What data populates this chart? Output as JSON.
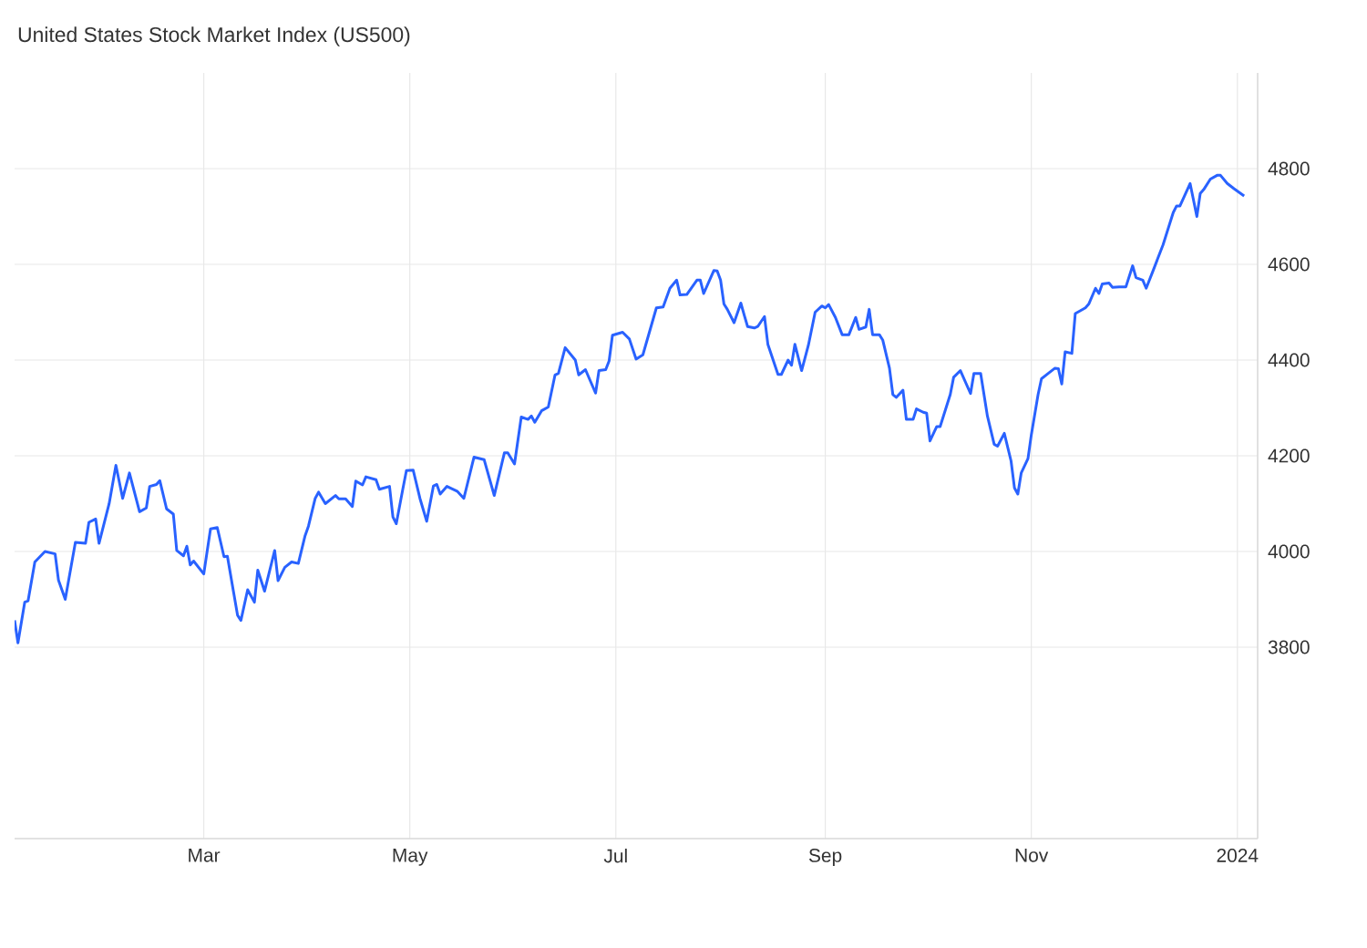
{
  "chart_data": {
    "type": "line",
    "title": "United States Stock Market Index (US500)",
    "color": "#2962ff",
    "grid": true,
    "xlim": [
      "2023-01-04",
      "2024-01-07"
    ],
    "ylim": [
      3400,
      5000
    ],
    "xticks": [
      {
        "value": "2023-03-01",
        "label": "Mar"
      },
      {
        "value": "2023-05-01",
        "label": "May"
      },
      {
        "value": "2023-07-01",
        "label": "Jul"
      },
      {
        "value": "2023-09-01",
        "label": "Sep"
      },
      {
        "value": "2023-11-01",
        "label": "Nov"
      },
      {
        "value": "2024-01-01",
        "label": "2024"
      }
    ],
    "yticks": [
      3800,
      4000,
      4200,
      4400,
      4600,
      4800
    ],
    "x": [
      "2023-01-04",
      "2023-01-05",
      "2023-01-07",
      "2023-01-08",
      "2023-01-10",
      "2023-01-13",
      "2023-01-16",
      "2023-01-17",
      "2023-01-19",
      "2023-01-22",
      "2023-01-25",
      "2023-01-26",
      "2023-01-28",
      "2023-01-29",
      "2023-02-01",
      "2023-02-03",
      "2023-02-05",
      "2023-02-07",
      "2023-02-10",
      "2023-02-12",
      "2023-02-13",
      "2023-02-15",
      "2023-02-16",
      "2023-02-18",
      "2023-02-20",
      "2023-02-21",
      "2023-02-23",
      "2023-02-24",
      "2023-02-25",
      "2023-02-26",
      "2023-03-01",
      "2023-03-03",
      "2023-03-05",
      "2023-03-07",
      "2023-03-08",
      "2023-03-11",
      "2023-03-12",
      "2023-03-14",
      "2023-03-16",
      "2023-03-17",
      "2023-03-19",
      "2023-03-22",
      "2023-03-23",
      "2023-03-25",
      "2023-03-27",
      "2023-03-29",
      "2023-03-31",
      "2023-04-01",
      "2023-04-03",
      "2023-04-04",
      "2023-04-06",
      "2023-04-09",
      "2023-04-10",
      "2023-04-12",
      "2023-04-14",
      "2023-04-15",
      "2023-04-17",
      "2023-04-18",
      "2023-04-21",
      "2023-04-22",
      "2023-04-25",
      "2023-04-26",
      "2023-04-27",
      "2023-04-29",
      "2023-04-30",
      "2023-05-02",
      "2023-05-04",
      "2023-05-06",
      "2023-05-08",
      "2023-05-09",
      "2023-05-10",
      "2023-05-12",
      "2023-05-15",
      "2023-05-17",
      "2023-05-20",
      "2023-05-23",
      "2023-05-26",
      "2023-05-29",
      "2023-05-30",
      "2023-06-01",
      "2023-06-03",
      "2023-06-05",
      "2023-06-06",
      "2023-06-07",
      "2023-06-09",
      "2023-06-11",
      "2023-06-13",
      "2023-06-14",
      "2023-06-16",
      "2023-06-19",
      "2023-06-20",
      "2023-06-22",
      "2023-06-25",
      "2023-06-26",
      "2023-06-28",
      "2023-06-29",
      "2023-06-30",
      "2023-07-03",
      "2023-07-05",
      "2023-07-07",
      "2023-07-09",
      "2023-07-13",
      "2023-07-15",
      "2023-07-17",
      "2023-07-19",
      "2023-07-20",
      "2023-07-22",
      "2023-07-25",
      "2023-07-26",
      "2023-07-27",
      "2023-07-30",
      "2023-07-31",
      "2023-08-01",
      "2023-08-02",
      "2023-08-03",
      "2023-08-05",
      "2023-08-07",
      "2023-08-08",
      "2023-08-09",
      "2023-08-11",
      "2023-08-12",
      "2023-08-14",
      "2023-08-15",
      "2023-08-18",
      "2023-08-19",
      "2023-08-21",
      "2023-08-22",
      "2023-08-23",
      "2023-08-25",
      "2023-08-27",
      "2023-08-29",
      "2023-08-31",
      "2023-09-01",
      "2023-09-02",
      "2023-09-04",
      "2023-09-06",
      "2023-09-08",
      "2023-09-10",
      "2023-09-11",
      "2023-09-13",
      "2023-09-14",
      "2023-09-15",
      "2023-09-17",
      "2023-09-18",
      "2023-09-20",
      "2023-09-21",
      "2023-09-22",
      "2023-09-24",
      "2023-09-25",
      "2023-09-27",
      "2023-09-28",
      "2023-09-30",
      "2023-10-01",
      "2023-10-02",
      "2023-10-04",
      "2023-10-05",
      "2023-10-08",
      "2023-10-09",
      "2023-10-11",
      "2023-10-14",
      "2023-10-15",
      "2023-10-17",
      "2023-10-19",
      "2023-10-21",
      "2023-10-22",
      "2023-10-24",
      "2023-10-26",
      "2023-10-27",
      "2023-10-28",
      "2023-10-29",
      "2023-10-31",
      "2023-11-01",
      "2023-11-03",
      "2023-11-04",
      "2023-11-06",
      "2023-11-08",
      "2023-11-09",
      "2023-11-10",
      "2023-11-11",
      "2023-11-13",
      "2023-11-14",
      "2023-11-17",
      "2023-11-18",
      "2023-11-20",
      "2023-11-21",
      "2023-11-22",
      "2023-11-24",
      "2023-11-25",
      "2023-11-27",
      "2023-11-29",
      "2023-12-01",
      "2023-12-02",
      "2023-12-04",
      "2023-12-05",
      "2023-12-07",
      "2023-12-10",
      "2023-12-13",
      "2023-12-14",
      "2023-12-15",
      "2023-12-18",
      "2023-12-20",
      "2023-12-21",
      "2023-12-22",
      "2023-12-24",
      "2023-12-26",
      "2023-12-27",
      "2023-12-29",
      "2023-12-31",
      "2024-01-03"
    ],
    "values": [
      3856,
      3809,
      3894,
      3897,
      3978,
      4000,
      3995,
      3940,
      3900,
      4019,
      4017,
      4061,
      4068,
      4017,
      4100,
      4180,
      4111,
      4164,
      4083,
      4091,
      4136,
      4140,
      4148,
      4089,
      4078,
      4002,
      3991,
      4011,
      3972,
      3980,
      3953,
      4047,
      4050,
      3989,
      3990,
      3867,
      3856,
      3920,
      3894,
      3961,
      3917,
      4002,
      3939,
      3967,
      3978,
      3975,
      4033,
      4053,
      4111,
      4124,
      4100,
      4117,
      4110,
      4110,
      4094,
      4147,
      4139,
      4156,
      4150,
      4130,
      4136,
      4072,
      4058,
      4133,
      4169,
      4170,
      4111,
      4063,
      4137,
      4140,
      4120,
      4136,
      4126,
      4111,
      4197,
      4192,
      4117,
      4206,
      4206,
      4183,
      4281,
      4276,
      4283,
      4270,
      4294,
      4302,
      4369,
      4372,
      4426,
      4400,
      4369,
      4380,
      4331,
      4378,
      4380,
      4398,
      4452,
      4458,
      4444,
      4402,
      4411,
      4509,
      4511,
      4550,
      4567,
      4536,
      4537,
      4567,
      4567,
      4539,
      4587,
      4586,
      4567,
      4517,
      4506,
      4478,
      4519,
      4494,
      4470,
      4467,
      4470,
      4491,
      4433,
      4370,
      4370,
      4400,
      4389,
      4433,
      4378,
      4431,
      4500,
      4513,
      4509,
      4516,
      4489,
      4453,
      4453,
      4489,
      4464,
      4469,
      4506,
      4453,
      4453,
      4442,
      4383,
      4328,
      4322,
      4337,
      4276,
      4276,
      4298,
      4291,
      4289,
      4231,
      4261,
      4261,
      4328,
      4364,
      4378,
      4330,
      4372,
      4372,
      4283,
      4224,
      4220,
      4247,
      4189,
      4133,
      4120,
      4164,
      4194,
      4244,
      4328,
      4361,
      4372,
      4383,
      4382,
      4350,
      4417,
      4414,
      4497,
      4509,
      4517,
      4550,
      4539,
      4559,
      4561,
      4552,
      4553,
      4553,
      4597,
      4572,
      4567,
      4550,
      4586,
      4641,
      4708,
      4722,
      4722,
      4769,
      4700,
      4748,
      4756,
      4778,
      4786,
      4786,
      4769,
      4758,
      4743
    ]
  }
}
